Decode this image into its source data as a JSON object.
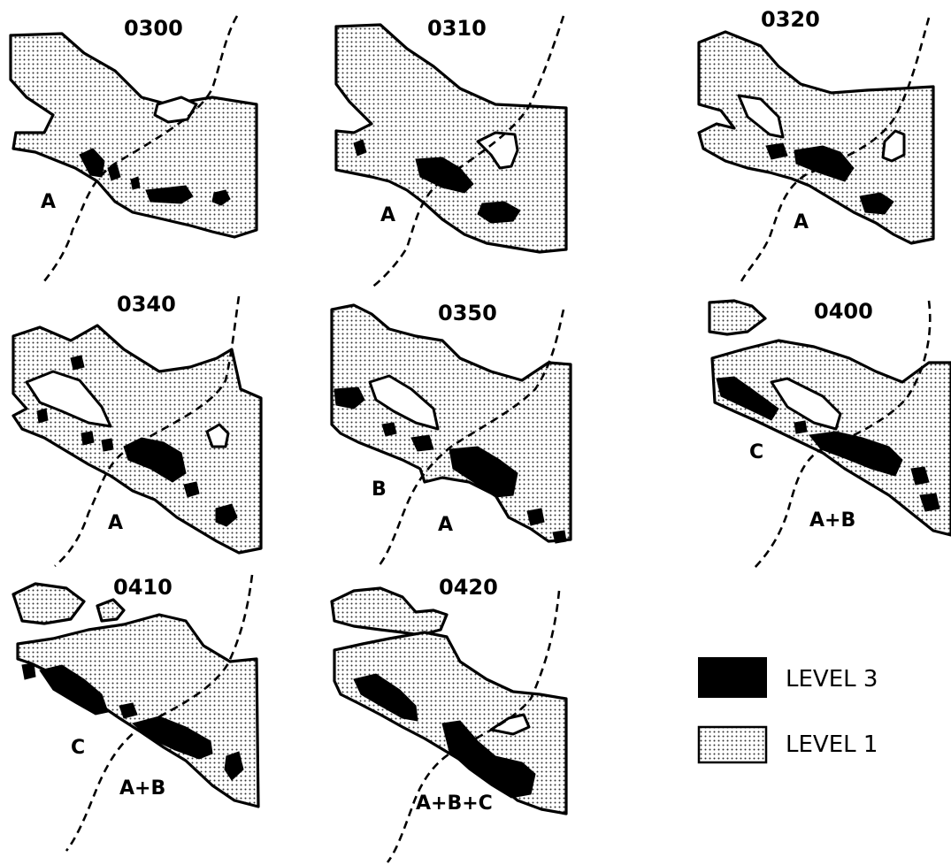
{
  "panels": [
    {
      "time": "0300",
      "labels": [
        "A"
      ]
    },
    {
      "time": "0310",
      "labels": [
        "A"
      ]
    },
    {
      "time": "0320",
      "labels": [
        "A"
      ]
    },
    {
      "time": "0340",
      "labels": [
        "A"
      ]
    },
    {
      "time": "0350",
      "labels": [
        "B",
        "A"
      ]
    },
    {
      "time": "0400",
      "labels": [
        "C",
        "A+B"
      ]
    },
    {
      "time": "0410",
      "labels": [
        "C",
        "A+B"
      ]
    },
    {
      "time": "0420",
      "labels": [
        "A+B+C"
      ]
    }
  ],
  "legend": {
    "level3": "LEVEL 3",
    "level1": "LEVEL 1"
  }
}
